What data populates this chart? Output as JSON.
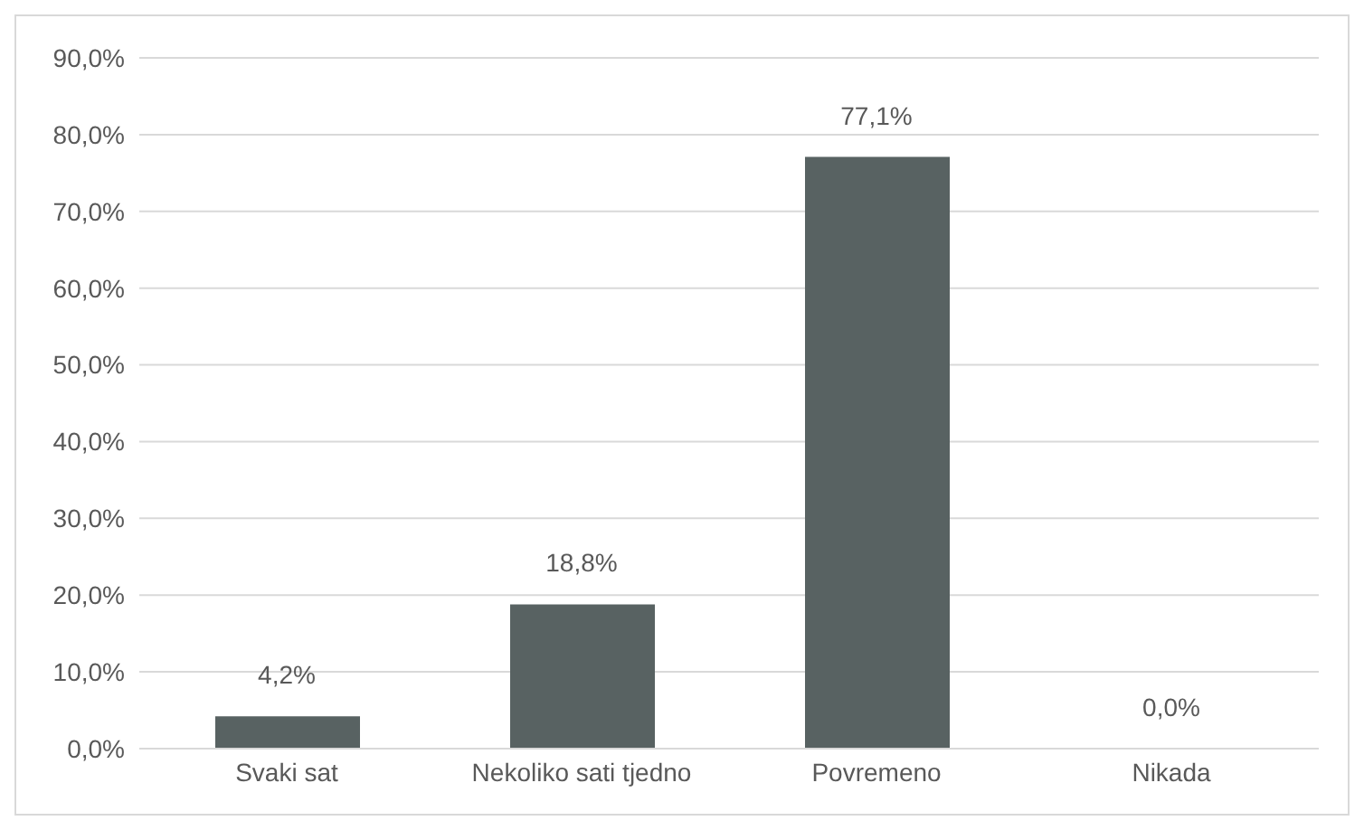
{
  "chart_data": {
    "type": "bar",
    "categories": [
      "Svaki sat",
      "Nekoliko sati tjedno",
      "Povremeno",
      "Nikada"
    ],
    "values": [
      4.2,
      18.8,
      77.1,
      0.0
    ],
    "value_labels": [
      "4,2%",
      "18,8%",
      "77,1%",
      "0,0%"
    ],
    "color": "#586262",
    "ylim": [
      0,
      90
    ],
    "yticks": [
      {
        "value": 0,
        "label": "0,0%"
      },
      {
        "value": 10,
        "label": "10,0%"
      },
      {
        "value": 20,
        "label": "20,0%"
      },
      {
        "value": 30,
        "label": "30,0%"
      },
      {
        "value": 40,
        "label": "40,0%"
      },
      {
        "value": 50,
        "label": "50,0%"
      },
      {
        "value": 60,
        "label": "60,0%"
      },
      {
        "value": 70,
        "label": "70,0%"
      },
      {
        "value": 80,
        "label": "80,0%"
      },
      {
        "value": 90,
        "label": "90,0%"
      }
    ],
    "grid": "y",
    "legend": false
  }
}
